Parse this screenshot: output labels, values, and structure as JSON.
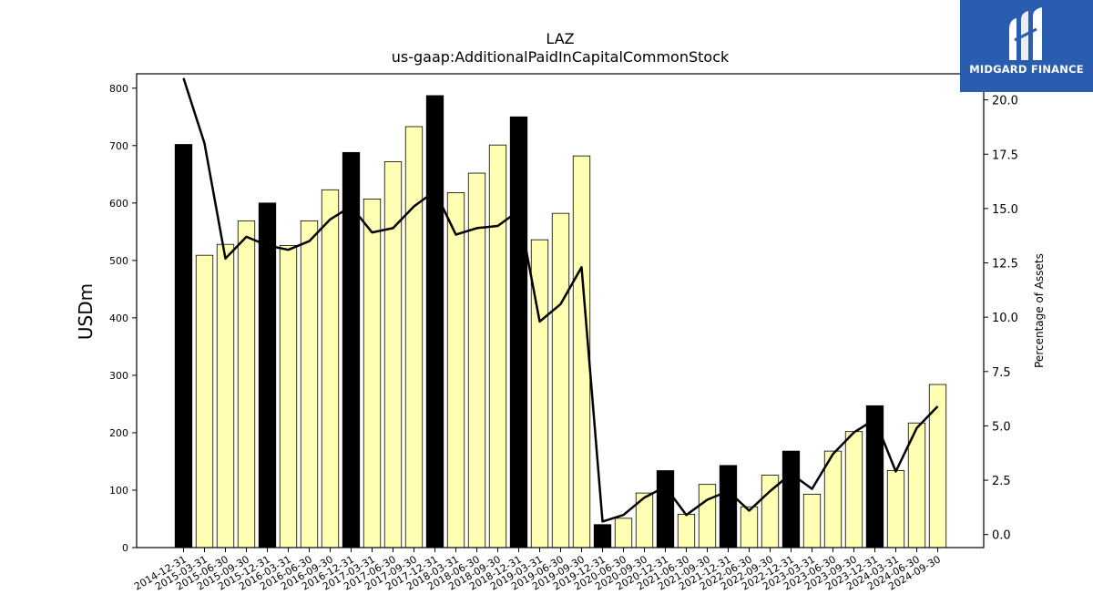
{
  "brand": {
    "name": "MIDGARD FINANCE",
    "color": "#2a5db0"
  },
  "chart_data": {
    "type": "bar",
    "title": "LAZ",
    "subtitle": "us-gaap:AdditionalPaidInCapitalCommonStock",
    "ylabel": "USDm",
    "ylabel_right": "Percentage of Assets",
    "ylim": [
      0,
      825
    ],
    "ylim_right": [
      -0.6,
      21.2
    ],
    "yticks": [
      0,
      100,
      200,
      300,
      400,
      500,
      600,
      700,
      800
    ],
    "yticks_right": [
      "0.0",
      "2.5",
      "5.0",
      "7.5",
      "10.0",
      "12.5",
      "15.0",
      "17.5",
      "20.0"
    ],
    "bar_colors": {
      "year_end": "#000000",
      "quarter": "#ffffb3"
    },
    "line_color": "#000000",
    "categories": [
      "2014-12-31",
      "2015-03-31",
      "2015-06-30",
      "2015-09-30",
      "2015-12-31",
      "2016-03-31",
      "2016-06-30",
      "2016-09-30",
      "2016-12-31",
      "2017-03-31",
      "2017-06-30",
      "2017-09-30",
      "2017-12-31",
      "2018-03-31",
      "2018-06-30",
      "2018-09-30",
      "2018-12-31",
      "2019-03-31",
      "2019-06-30",
      "2019-09-30",
      "2019-12-31",
      "2020-06-30",
      "2020-09-30",
      "2020-12-31",
      "2021-06-30",
      "2021-09-30",
      "2021-12-31",
      "2022-06-30",
      "2022-09-30",
      "2022-12-31",
      "2023-03-31",
      "2023-06-30",
      "2023-09-30",
      "2023-12-31",
      "2024-03-31",
      "2024-06-30",
      "2024-09-30"
    ],
    "series": [
      {
        "type": "bar",
        "values": [
          702,
          509,
          528,
          569,
          600,
          526,
          569,
          623,
          688,
          607,
          672,
          733,
          787,
          618,
          652,
          701,
          750,
          536,
          582,
          682,
          40,
          51,
          95,
          134,
          58,
          110,
          143,
          71,
          126,
          168,
          93,
          168,
          202,
          247,
          134,
          217,
          284
        ],
        "year_end": [
          true,
          false,
          false,
          false,
          true,
          false,
          false,
          false,
          true,
          false,
          false,
          false,
          true,
          false,
          false,
          false,
          true,
          false,
          false,
          false,
          true,
          false,
          false,
          true,
          false,
          false,
          true,
          false,
          false,
          true,
          false,
          false,
          false,
          true,
          false,
          false,
          false
        ]
      },
      {
        "type": "line",
        "axis": "right",
        "values": [
          21.0,
          18.0,
          12.7,
          13.7,
          13.3,
          13.1,
          13.5,
          14.5,
          15.1,
          13.9,
          14.1,
          15.1,
          15.8,
          13.8,
          14.1,
          14.2,
          14.9,
          9.8,
          10.6,
          12.3,
          0.6,
          0.9,
          1.7,
          2.2,
          0.9,
          1.6,
          2.0,
          1.1,
          2.0,
          2.8,
          2.1,
          3.7,
          4.7,
          5.3,
          2.9,
          4.9,
          5.9
        ]
      }
    ]
  }
}
